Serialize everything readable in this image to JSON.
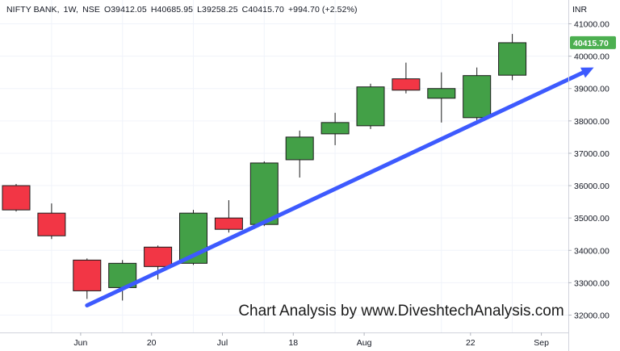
{
  "header": {
    "symbol": "NIFTY BANK",
    "interval": "1W",
    "exchange": "NSE",
    "open": "O39412.05",
    "high": "H40685.95",
    "low": "L39258.25",
    "close": "C40415.70",
    "change": "+994.70 (+2.52%)"
  },
  "watermark": "Chart Analysis by www.DiveshtechAnalysis.com",
  "colors": {
    "up": "#43a047",
    "down": "#f23645",
    "trendline": "#3d5afe",
    "last_label_bg": "#4caf50"
  },
  "chart_data": {
    "type": "candlestick",
    "currency": "INR",
    "ylim": [
      31500,
      41500
    ],
    "y_ticks": [
      32000,
      33000,
      34000,
      35000,
      36000,
      37000,
      38000,
      39000,
      40000,
      41000
    ],
    "y_tick_labels": [
      "32000.00",
      "33000.00",
      "34000.00",
      "35000.00",
      "36000.00",
      "37000.00",
      "38000.00",
      "39000.00",
      "40000.00",
      "41000.00"
    ],
    "x_tick_labels": [
      {
        "label": "Jun",
        "index": 1
      },
      {
        "label": "20",
        "index": 3
      },
      {
        "label": "Jul",
        "index": 5
      },
      {
        "label": "18",
        "index": 7
      },
      {
        "label": "Aug",
        "index": 9
      },
      {
        "label": "22",
        "index": 12
      },
      {
        "label": "Sep",
        "index": 14
      }
    ],
    "candles": [
      {
        "open": 36000,
        "high": 36050,
        "low": 35200,
        "close": 35250
      },
      {
        "open": 35150,
        "high": 35450,
        "low": 34350,
        "close": 34450
      },
      {
        "open": 33700,
        "high": 33750,
        "low": 32500,
        "close": 32750
      },
      {
        "open": 32850,
        "high": 33700,
        "low": 32450,
        "close": 33600
      },
      {
        "open": 34100,
        "high": 34150,
        "low": 33100,
        "close": 33500
      },
      {
        "open": 33600,
        "high": 35250,
        "low": 33550,
        "close": 35150
      },
      {
        "open": 35000,
        "high": 35550,
        "low": 34550,
        "close": 34650
      },
      {
        "open": 34800,
        "high": 36750,
        "low": 34750,
        "close": 36700
      },
      {
        "open": 36800,
        "high": 37700,
        "low": 36250,
        "close": 37500
      },
      {
        "open": 37600,
        "high": 38250,
        "low": 37250,
        "close": 37950
      },
      {
        "open": 37850,
        "high": 39150,
        "low": 37750,
        "close": 39050
      },
      {
        "open": 39300,
        "high": 39800,
        "low": 38850,
        "close": 38950
      },
      {
        "open": 38700,
        "high": 39500,
        "low": 37950,
        "close": 39000
      },
      {
        "open": 38100,
        "high": 39650,
        "low": 37950,
        "close": 39400
      },
      {
        "open": 39412.05,
        "high": 40685.95,
        "low": 39258.25,
        "close": 40415.7
      }
    ],
    "last_value_label": "40415.70",
    "trendline": {
      "start": {
        "index": 2,
        "value": 32300
      },
      "end": {
        "index": 16.3,
        "value": 39650
      }
    }
  }
}
